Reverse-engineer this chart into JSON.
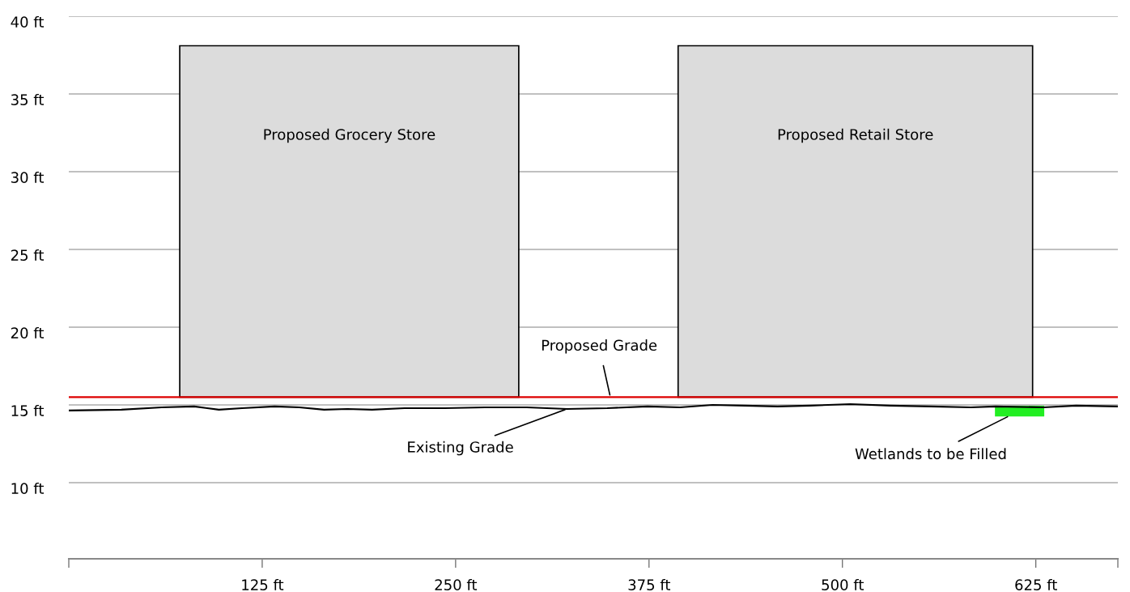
{
  "chart_data": {
    "type": "line",
    "xlim": [
      0,
      678
    ],
    "ylim": [
      5.1,
      40
    ],
    "xticks": [
      {
        "value": 0,
        "label": null
      },
      {
        "value": 125,
        "label": "125 ft"
      },
      {
        "value": 250,
        "label": "250 ft"
      },
      {
        "value": 375,
        "label": "375 ft"
      },
      {
        "value": 500,
        "label": "500 ft"
      },
      {
        "value": 625,
        "label": "625 ft"
      },
      {
        "value": 678,
        "label": null
      }
    ],
    "yticks": [
      {
        "value": 10,
        "label": "10 ft"
      },
      {
        "value": 15,
        "label": "15 ft"
      },
      {
        "value": 20,
        "label": "20 ft"
      },
      {
        "value": 25,
        "label": "25 ft"
      },
      {
        "value": 30,
        "label": "30 ft"
      },
      {
        "value": 35,
        "label": "35 ft"
      },
      {
        "value": 40,
        "label": "40 ft"
      }
    ],
    "grid": "y",
    "legend": false,
    "series": [
      {
        "type": "histogram",
        "name": "Proposed Grocery Store",
        "color": "#dcdcdc",
        "bins": [
          71.7,
          290.8
        ],
        "base": [
          15.5
        ],
        "values": [
          22.6
        ]
      },
      {
        "type": "histogram",
        "name": "Proposed Retail Store",
        "color": "#dcdcdc",
        "bins": [
          393.8,
          622.9
        ],
        "base": [
          15.5
        ],
        "values": [
          22.6
        ]
      },
      {
        "type": "histogram",
        "color": "#22ee22",
        "bins": [
          599,
          630
        ],
        "base": [
          14.3
        ],
        "values": [
          0.6
        ]
      },
      {
        "color": "#000000",
        "x": [
          0,
          34,
          60,
          81,
          97,
          112,
          133,
          149,
          165,
          180,
          196,
          217,
          243,
          269,
          296,
          322,
          348,
          374,
          395,
          416,
          437,
          458,
          479,
          505,
          531,
          557,
          583,
          599,
          630,
          651,
          678
        ],
        "values": [
          14.64,
          14.69,
          14.84,
          14.9,
          14.69,
          14.79,
          14.9,
          14.84,
          14.69,
          14.74,
          14.69,
          14.79,
          14.79,
          14.84,
          14.84,
          14.74,
          14.79,
          14.9,
          14.84,
          15.0,
          14.95,
          14.9,
          14.95,
          15.05,
          14.95,
          14.9,
          14.84,
          14.9,
          14.84,
          14.95,
          14.9
        ]
      }
    ],
    "ref_lines": [
      {
        "axis": "y",
        "value": 15.5,
        "color": "#dd0000"
      }
    ],
    "annotations": [
      {
        "text": "Proposed Grade",
        "x": 350,
        "y": 15.5
      },
      {
        "text": "Existing Grade",
        "x": 322,
        "y": 14.74
      },
      {
        "text": "Wetlands to be Filled",
        "x": 608,
        "y": 14.3
      }
    ]
  }
}
